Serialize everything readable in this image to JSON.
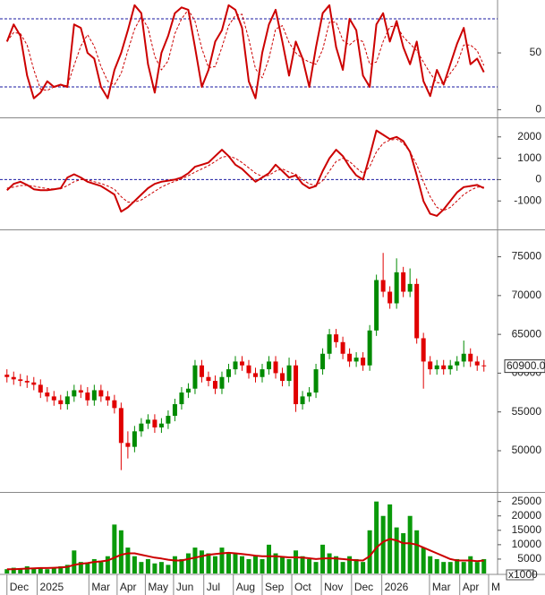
{
  "x_axis": {
    "xlim": [
      -0.5,
      72.5
    ],
    "xticks": [
      {
        "value": 0,
        "label": "Dec"
      },
      {
        "value": 4.5,
        "label": "2025"
      },
      {
        "value": 12.2,
        "label": "Mar"
      },
      {
        "value": 16.4,
        "label": "Apr"
      },
      {
        "value": 20.6,
        "label": "May"
      },
      {
        "value": 24.8,
        "label": "Jun"
      },
      {
        "value": 29.3,
        "label": "Jul"
      },
      {
        "value": 33.7,
        "label": "Aug"
      },
      {
        "value": 38,
        "label": "Sep"
      },
      {
        "value": 42.4,
        "label": "Oct"
      },
      {
        "value": 46.8,
        "label": "Nov"
      },
      {
        "value": 51.3,
        "label": "Dec"
      },
      {
        "value": 55.8,
        "label": "2026"
      },
      {
        "value": 62.9,
        "label": "Mar"
      },
      {
        "value": 67.4,
        "label": "Apr"
      },
      {
        "value": 71.7,
        "label": "M"
      }
    ],
    "x": [
      0,
      1,
      2,
      3,
      4,
      5,
      6,
      7,
      8,
      9,
      10,
      11,
      12,
      13,
      14,
      15,
      16,
      17,
      18,
      19,
      20,
      21,
      22,
      23,
      24,
      25,
      26,
      27,
      28,
      29,
      30,
      31,
      32,
      33,
      34,
      35,
      36,
      37,
      38,
      39,
      40,
      41,
      42,
      43,
      44,
      45,
      46,
      47,
      48,
      49,
      50,
      51,
      52,
      53,
      54,
      55,
      56,
      57,
      58,
      59,
      60,
      61,
      62,
      63,
      64,
      65,
      66,
      67,
      68,
      69,
      70,
      71
    ]
  },
  "chart_data": [
    {
      "type": "line",
      "ylim": [
        -6,
        95
      ],
      "yticks": [
        0,
        50
      ],
      "ref_lines": [
        20,
        80
      ],
      "ref_color": "#1a1aa0",
      "series": [
        {
          "color": "#cc0000",
          "style": "solid",
          "values": [
            60,
            75,
            65,
            30,
            10,
            15,
            25,
            20,
            22,
            20,
            75,
            72,
            50,
            45,
            20,
            10,
            35,
            50,
            70,
            92,
            85,
            40,
            15,
            50,
            65,
            85,
            90,
            88,
            55,
            20,
            35,
            60,
            70,
            92,
            88,
            72,
            25,
            10,
            50,
            75,
            88,
            60,
            30,
            60,
            45,
            20,
            55,
            85,
            92,
            55,
            35,
            80,
            70,
            30,
            20,
            75,
            85,
            60,
            78,
            55,
            40,
            60,
            25,
            12,
            35,
            22,
            40,
            58,
            72,
            40,
            45,
            33
          ]
        },
        {
          "color": "#cc0000",
          "style": "dashed",
          "values": [
            60,
            68,
            67,
            57,
            35,
            18,
            17,
            20,
            22,
            21,
            39,
            56,
            66,
            56,
            38,
            25,
            22,
            32,
            52,
            71,
            82,
            72,
            47,
            35,
            43,
            67,
            80,
            88,
            78,
            54,
            37,
            38,
            55,
            74,
            83,
            84,
            62,
            36,
            28,
            45,
            71,
            74,
            59,
            50,
            45,
            42,
            40,
            53,
            77,
            77,
            61,
            57,
            62,
            60,
            40,
            42,
            60,
            73,
            74,
            64,
            58,
            52,
            42,
            32,
            24,
            23,
            32,
            40,
            57,
            57,
            52,
            39
          ]
        }
      ]
    },
    {
      "type": "line",
      "ylim": [
        -2290,
        2830
      ],
      "yticks": [
        -1000,
        0,
        1000,
        2000
      ],
      "ref_lines": [
        0
      ],
      "ref_color": "#1a1aa0",
      "series": [
        {
          "color": "#cc0000",
          "style": "solid",
          "values": [
            -500,
            -200,
            -100,
            -250,
            -450,
            -500,
            -500,
            -450,
            -400,
            100,
            250,
            100,
            -100,
            -200,
            -300,
            -500,
            -700,
            -1500,
            -1300,
            -1000,
            -700,
            -400,
            -200,
            -100,
            -50,
            0,
            100,
            300,
            600,
            700,
            800,
            1100,
            1400,
            1100,
            700,
            500,
            200,
            -100,
            100,
            300,
            700,
            400,
            100,
            200,
            -200,
            -400,
            -300,
            400,
            1000,
            1400,
            1100,
            600,
            200,
            0,
            1100,
            2300,
            2100,
            1900,
            2000,
            1800,
            1300,
            200,
            -1000,
            -1600,
            -1700,
            -1400,
            -1000,
            -600,
            -350,
            -300,
            -250,
            -400
          ]
        },
        {
          "color": "#cc0000",
          "style": "dashed",
          "values": [
            -400,
            -350,
            -280,
            -270,
            -310,
            -370,
            -420,
            -440,
            -430,
            -280,
            -100,
            0,
            -20,
            -100,
            -180,
            -300,
            -450,
            -800,
            -1050,
            -1050,
            -950,
            -750,
            -550,
            -350,
            -200,
            -80,
            30,
            180,
            350,
            500,
            650,
            850,
            1050,
            1100,
            1000,
            800,
            550,
            300,
            150,
            200,
            400,
            500,
            350,
            250,
            0,
            -200,
            -280,
            -50,
            400,
            850,
            1000,
            850,
            550,
            300,
            600,
            1300,
            1700,
            1850,
            1900,
            1700,
            1300,
            700,
            -100,
            -800,
            -1300,
            -1450,
            -1300,
            -1000,
            -700,
            -500,
            -350,
            -350
          ]
        }
      ]
    },
    {
      "type": "candlestick",
      "ylim": [
        44800,
        78300
      ],
      "yticks": [
        50000,
        55000,
        60000,
        65000,
        70000,
        75000
      ],
      "up_color": "#008a00",
      "down_color": "#e00000",
      "last_label": "60900.00",
      "open": [
        59800,
        59500,
        59200,
        59000,
        58800,
        58500,
        57500,
        57000,
        56500,
        56000,
        57000,
        57800,
        57500,
        56500,
        57800,
        57000,
        56500,
        55500,
        51000,
        50500,
        52500,
        53500,
        54000,
        53000,
        53500,
        54500,
        56000,
        57500,
        58000,
        61000,
        59500,
        59000,
        58000,
        59500,
        60500,
        61500,
        61000,
        60000,
        59500,
        60500,
        61500,
        60000,
        59000,
        61000,
        56000,
        57000,
        57500,
        60500,
        62500,
        65000,
        64000,
        62500,
        61500,
        62000,
        61000,
        65500,
        72000,
        70500,
        69000,
        73000,
        70500,
        71500,
        64500,
        61500,
        60500,
        61000,
        60500,
        61000,
        61500,
        62500,
        61500,
        61000
      ],
      "high": [
        60500,
        60200,
        59900,
        59700,
        59500,
        59200,
        58200,
        57700,
        57200,
        57700,
        58500,
        58500,
        58200,
        58500,
        58500,
        57700,
        57200,
        56200,
        52500,
        53200,
        54200,
        54700,
        54700,
        54200,
        55200,
        56700,
        58200,
        58700,
        61700,
        61700,
        60200,
        59700,
        60200,
        61200,
        62200,
        62200,
        61700,
        60700,
        61200,
        62200,
        62200,
        60700,
        62000,
        61700,
        57700,
        58200,
        61200,
        63200,
        65700,
        65700,
        64700,
        63200,
        62700,
        62700,
        66200,
        72700,
        75500,
        71200,
        74800,
        73700,
        73500,
        72200,
        65200,
        62200,
        61700,
        61700,
        61700,
        62200,
        64200,
        63200,
        62200,
        61700
      ],
      "low": [
        58800,
        58500,
        58300,
        58100,
        57800,
        56800,
        56300,
        55800,
        55300,
        55300,
        56300,
        56800,
        55800,
        55800,
        56300,
        55800,
        54800,
        47500,
        49000,
        49800,
        51800,
        52800,
        52300,
        52300,
        52800,
        53800,
        55300,
        56800,
        57300,
        58800,
        58300,
        57300,
        57300,
        58800,
        59800,
        60300,
        59300,
        58800,
        58800,
        59800,
        59300,
        58300,
        58300,
        55000,
        55300,
        56300,
        56800,
        59800,
        61800,
        63300,
        61800,
        60800,
        60800,
        60300,
        60300,
        64800,
        69800,
        68300,
        68300,
        69800,
        69800,
        63800,
        58000,
        59800,
        59800,
        59800,
        59800,
        60300,
        60800,
        60800,
        60300,
        60200
      ],
      "close": [
        59500,
        59200,
        59000,
        58800,
        58500,
        57500,
        57000,
        56500,
        56000,
        57000,
        57800,
        57500,
        56500,
        57800,
        57000,
        56500,
        55500,
        51000,
        50500,
        52500,
        53500,
        54000,
        53000,
        53500,
        54500,
        56000,
        57500,
        58000,
        61000,
        59500,
        59000,
        58000,
        59500,
        60500,
        61500,
        61000,
        60000,
        59500,
        60500,
        61500,
        60000,
        59000,
        61000,
        56000,
        57000,
        57500,
        60500,
        62500,
        65000,
        64000,
        62500,
        61500,
        62000,
        61000,
        65500,
        72000,
        70500,
        69000,
        73000,
        70500,
        71500,
        64500,
        61500,
        60500,
        61000,
        60500,
        61000,
        61500,
        62500,
        61500,
        61000,
        60900
      ]
    },
    {
      "type": "bar",
      "ylim": [
        0,
        27700
      ],
      "yticks": [
        5000,
        10000,
        15000,
        20000,
        25000
      ],
      "unit_label": "x1000",
      "color": "#0a9a0a",
      "values": [
        1500,
        2000,
        1800,
        2500,
        2000,
        2000,
        1500,
        1800,
        2500,
        3000,
        8000,
        4000,
        3500,
        5000,
        4000,
        6000,
        17000,
        15000,
        9000,
        6000,
        4000,
        5000,
        3500,
        4000,
        3000,
        6000,
        5000,
        7000,
        9000,
        8000,
        7000,
        6000,
        9000,
        7000,
        7000,
        6000,
        5000,
        6000,
        5000,
        10000,
        7000,
        6000,
        5000,
        8000,
        6000,
        5000,
        4000,
        10000,
        7000,
        6000,
        4000,
        6000,
        5000,
        4000,
        15000,
        25000,
        20000,
        24000,
        16000,
        14000,
        20000,
        15000,
        9000,
        6000,
        5000,
        4000,
        4000,
        5000,
        4000,
        6000,
        4000,
        5000
      ],
      "series": [
        {
          "color": "#cc0000",
          "style": "solid",
          "values": [
            1500,
            1500,
            1600,
            1700,
            1800,
            1900,
            1900,
            2000,
            2100,
            2300,
            3000,
            3400,
            3600,
            4000,
            4200,
            4500,
            5500,
            6500,
            7000,
            7000,
            6500,
            6000,
            5500,
            5200,
            4800,
            4500,
            4500,
            5000,
            5500,
            6000,
            6500,
            6800,
            7000,
            7200,
            7000,
            6800,
            6500,
            6200,
            6000,
            6000,
            6000,
            5800,
            5600,
            5600,
            5500,
            5300,
            5000,
            5200,
            5300,
            5200,
            5000,
            4800,
            4600,
            4500,
            6000,
            9000,
            11000,
            12000,
            11500,
            10500,
            10500,
            10000,
            9000,
            8000,
            7000,
            6000,
            5000,
            4500,
            4500,
            4500,
            4300,
            4500
          ]
        }
      ]
    }
  ]
}
